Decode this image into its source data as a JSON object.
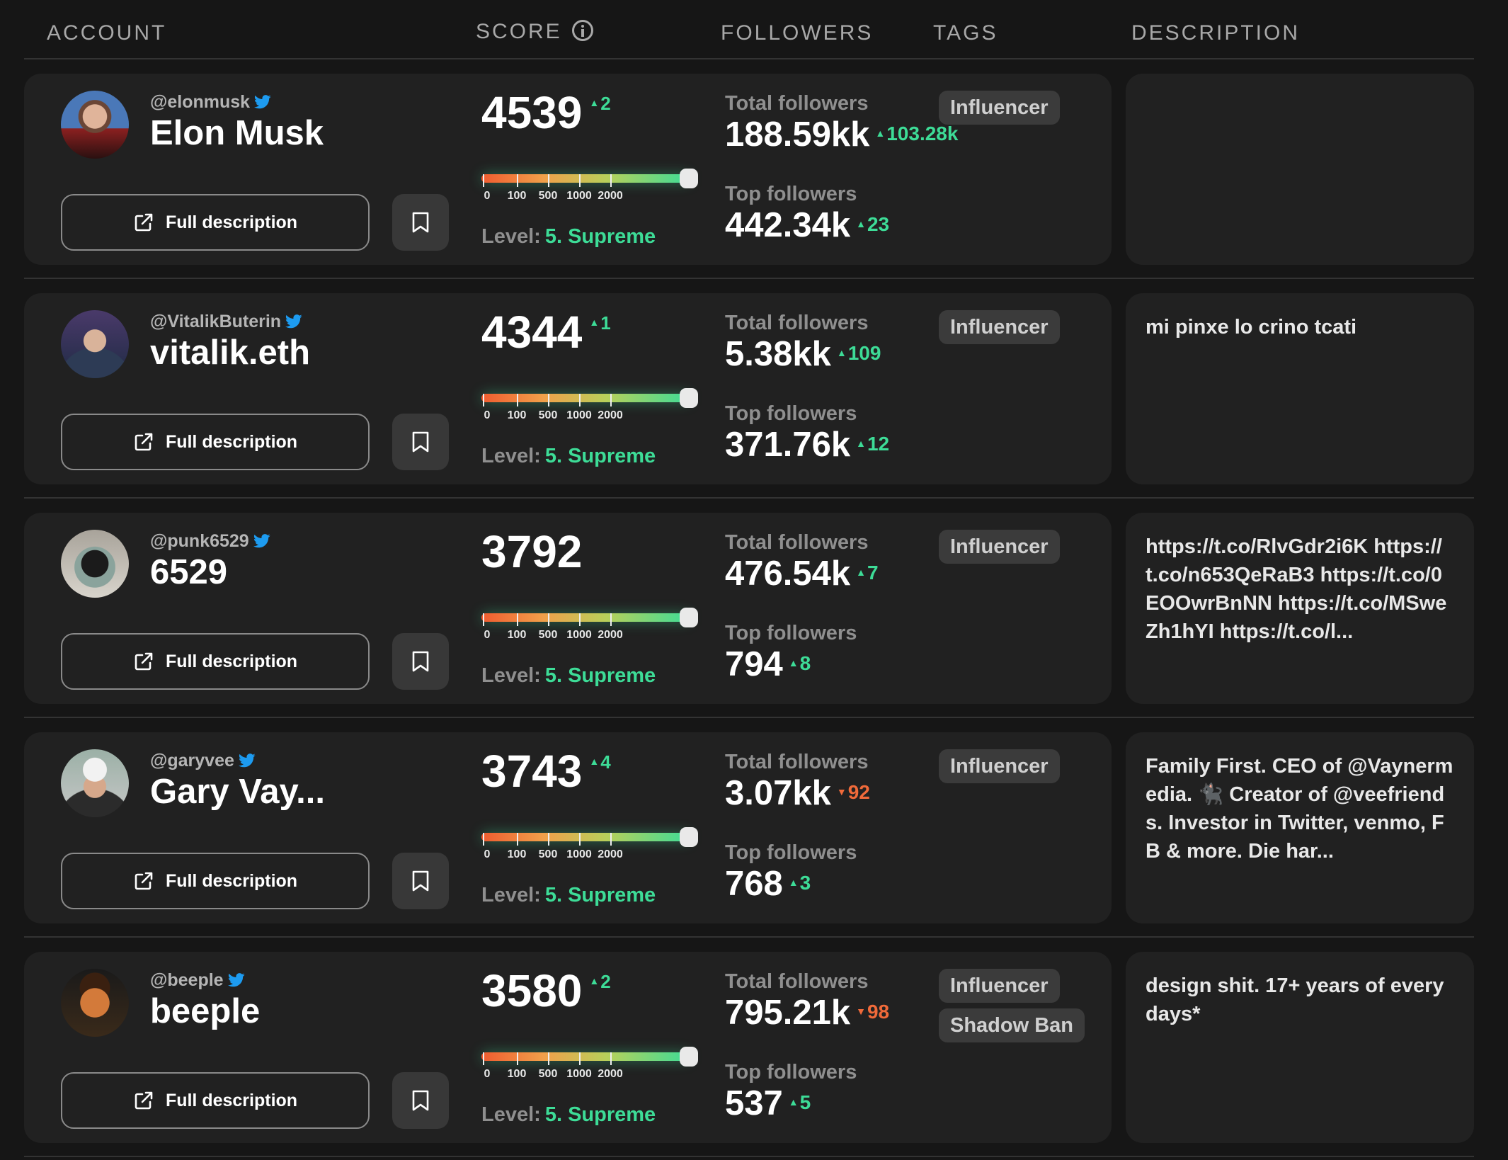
{
  "header": {
    "account": "ACCOUNT",
    "score": "SCORE",
    "followers": "FOLLOWERS",
    "tags": "TAGS",
    "description": "DESCRIPTION"
  },
  "labels": {
    "full_description": "Full description",
    "level_prefix": "Level:",
    "total_followers": "Total followers",
    "top_followers": "Top followers",
    "gauge_ticks": [
      "0",
      "100",
      "500",
      "1000",
      "2000"
    ]
  },
  "colors": {
    "up": "#3ddc97",
    "down": "#f06a3a",
    "twitter": "#1d9bf0"
  },
  "rows": [
    {
      "handle": "@elonmusk",
      "name": "Elon Musk",
      "score": "4539",
      "score_delta": "2",
      "level": "5. Supreme",
      "total_followers": "188.59kk",
      "total_delta": "103.28k",
      "total_dir": "up",
      "top_followers": "442.34k",
      "top_delta": "23",
      "top_dir": "up",
      "tags": [
        "Influencer"
      ],
      "description": ""
    },
    {
      "handle": "@VitalikButerin",
      "name": "vitalik.eth",
      "score": "4344",
      "score_delta": "1",
      "level": "5. Supreme",
      "total_followers": "5.38kk",
      "total_delta": "109",
      "total_dir": "up",
      "top_followers": "371.76k",
      "top_delta": "12",
      "top_dir": "up",
      "tags": [
        "Influencer"
      ],
      "description": "mi pinxe lo crino tcati"
    },
    {
      "handle": "@punk6529",
      "name": "6529",
      "score": "3792",
      "score_delta": "",
      "level": "5. Supreme",
      "total_followers": "476.54k",
      "total_delta": "7",
      "total_dir": "up",
      "top_followers": "794",
      "top_delta": "8",
      "top_dir": "up",
      "tags": [
        "Influencer"
      ],
      "description": "https://t.co/RlvGdr2i6K https://t.co/n653QeRaB3 https://t.co/0EOOwrBnNN https://t.co/MSweZh1hYI https://t.co/l..."
    },
    {
      "handle": "@garyvee",
      "name": "Gary Vay...",
      "score": "3743",
      "score_delta": "4",
      "level": "5. Supreme",
      "total_followers": "3.07kk",
      "total_delta": "92",
      "total_dir": "down",
      "top_followers": "768",
      "top_delta": "3",
      "top_dir": "up",
      "tags": [
        "Influencer"
      ],
      "description": "Family First. CEO of @Vaynermedia. 🐈‍⬛ Creator of @veefriends. Investor in Twitter, venmo, FB & more. Die har..."
    },
    {
      "handle": "@beeple",
      "name": "beeple",
      "score": "3580",
      "score_delta": "2",
      "level": "5. Supreme",
      "total_followers": "795.21k",
      "total_delta": "98",
      "total_dir": "down",
      "top_followers": "537",
      "top_delta": "5",
      "top_dir": "up",
      "tags": [
        "Influencer",
        "Shadow Ban"
      ],
      "description": "design shit. 17+ years of everydays*"
    }
  ]
}
